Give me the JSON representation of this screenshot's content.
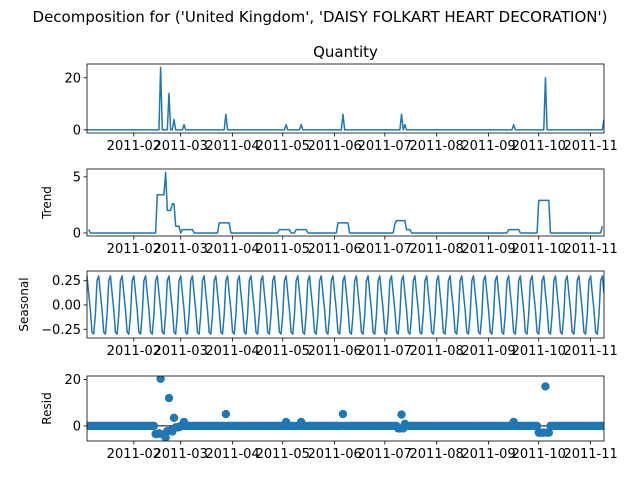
{
  "figure": {
    "suptitle": "Decomposition for ('United Kingdom', 'DAISY FOLKART HEART DECORATION')"
  },
  "colors": {
    "series": "#1f77b4",
    "axis": "#000000",
    "zero_line": "#000000"
  },
  "chart_data": [
    {
      "type": "line",
      "title": "Quantity",
      "ylabel": "",
      "xlim": [
        "2011-01-04",
        "2011-11-09"
      ],
      "ylim": [
        -1.2,
        25.3
      ],
      "yticks": [
        0,
        20
      ],
      "ytick_labels": [
        "0",
        "20"
      ],
      "xticks": [
        "2011-02-01",
        "2011-03-01",
        "2011-04-01",
        "2011-05-01",
        "2011-06-01",
        "2011-07-01",
        "2011-08-01",
        "2011-09-01",
        "2011-10-01",
        "2011-11-01"
      ],
      "xtick_labels": [
        "2011-02",
        "2011-03",
        "2011-04",
        "2011-05",
        "2011-06",
        "2011-07",
        "2011-08",
        "2011-09",
        "2011-10",
        "2011-11"
      ],
      "baseline": 0,
      "spikes": [
        {
          "x": "2011-02-17",
          "y": 24
        },
        {
          "x": "2011-02-22",
          "y": 14
        },
        {
          "x": "2011-02-25",
          "y": 4
        },
        {
          "x": "2011-03-03",
          "y": 2
        },
        {
          "x": "2011-03-28",
          "y": 6
        },
        {
          "x": "2011-05-03",
          "y": 2
        },
        {
          "x": "2011-05-12",
          "y": 2
        },
        {
          "x": "2011-06-06",
          "y": 6
        },
        {
          "x": "2011-07-11",
          "y": 6
        },
        {
          "x": "2011-07-13",
          "y": 2
        },
        {
          "x": "2011-09-16",
          "y": 2
        },
        {
          "x": "2011-10-05",
          "y": 20
        },
        {
          "x": "2011-11-09",
          "y": 4
        }
      ]
    },
    {
      "type": "line",
      "title": "",
      "ylabel": "Trend",
      "xlim": [
        "2011-01-04",
        "2011-11-09"
      ],
      "ylim": [
        -0.27,
        5.7
      ],
      "yticks": [
        0,
        5
      ],
      "ytick_labels": [
        "0",
        "5"
      ],
      "xticks": [
        "2011-02-01",
        "2011-03-01",
        "2011-04-01",
        "2011-05-01",
        "2011-06-01",
        "2011-07-01",
        "2011-08-01",
        "2011-09-01",
        "2011-10-01",
        "2011-11-01"
      ],
      "xtick_labels": [
        "2011-02",
        "2011-03",
        "2011-04",
        "2011-05",
        "2011-06",
        "2011-07",
        "2011-08",
        "2011-09",
        "2011-10",
        "2011-11"
      ],
      "points": [
        [
          "2011-01-05",
          0.3
        ],
        [
          "2011-01-06",
          0.0
        ],
        [
          "2011-02-14",
          0.0
        ],
        [
          "2011-02-15",
          3.4
        ],
        [
          "2011-02-19",
          3.4
        ],
        [
          "2011-02-20",
          5.4
        ],
        [
          "2011-02-21",
          2.0
        ],
        [
          "2011-02-23",
          2.0
        ],
        [
          "2011-02-24",
          2.6
        ],
        [
          "2011-02-25",
          2.6
        ],
        [
          "2011-02-26",
          0.6
        ],
        [
          "2011-02-28",
          0.6
        ],
        [
          "2011-03-01",
          0.0
        ],
        [
          "2011-03-02",
          0.3
        ],
        [
          "2011-03-08",
          0.3
        ],
        [
          "2011-03-09",
          0.0
        ],
        [
          "2011-03-23",
          0.0
        ],
        [
          "2011-03-24",
          0.9
        ],
        [
          "2011-03-30",
          0.9
        ],
        [
          "2011-03-31",
          0.0
        ],
        [
          "2011-04-28",
          0.0
        ],
        [
          "2011-04-29",
          0.3
        ],
        [
          "2011-05-05",
          0.3
        ],
        [
          "2011-05-06",
          0.0
        ],
        [
          "2011-05-08",
          0.0
        ],
        [
          "2011-05-09",
          0.3
        ],
        [
          "2011-05-15",
          0.3
        ],
        [
          "2011-05-16",
          0.0
        ],
        [
          "2011-06-02",
          0.0
        ],
        [
          "2011-06-03",
          0.9
        ],
        [
          "2011-06-09",
          0.9
        ],
        [
          "2011-06-10",
          0.0
        ],
        [
          "2011-07-06",
          0.0
        ],
        [
          "2011-07-07",
          0.8
        ],
        [
          "2011-07-08",
          1.1
        ],
        [
          "2011-07-13",
          1.1
        ],
        [
          "2011-07-14",
          0.3
        ],
        [
          "2011-07-16",
          0.3
        ],
        [
          "2011-07-17",
          0.0
        ],
        [
          "2011-09-12",
          0.0
        ],
        [
          "2011-09-13",
          0.3
        ],
        [
          "2011-09-19",
          0.3
        ],
        [
          "2011-09-20",
          0.0
        ],
        [
          "2011-09-30",
          0.0
        ],
        [
          "2011-10-01",
          2.9
        ],
        [
          "2011-10-07",
          2.9
        ],
        [
          "2011-10-08",
          0.0
        ],
        [
          "2011-11-07",
          0.0
        ],
        [
          "2011-11-08",
          0.6
        ]
      ]
    },
    {
      "type": "line",
      "title": "",
      "ylabel": "Seasonal",
      "xlim": [
        "2011-01-04",
        "2011-11-09"
      ],
      "ylim": [
        -0.34,
        0.35
      ],
      "yticks": [
        -0.25,
        0.0,
        0.25
      ],
      "ytick_labels": [
        "−0.25",
        "0.00",
        "0.25"
      ],
      "xticks": [
        "2011-02-01",
        "2011-03-01",
        "2011-04-01",
        "2011-05-01",
        "2011-06-01",
        "2011-07-01",
        "2011-08-01",
        "2011-09-01",
        "2011-10-01",
        "2011-11-01"
      ],
      "xtick_labels": [
        "2011-02",
        "2011-03",
        "2011-04",
        "2011-05",
        "2011-06",
        "2011-07",
        "2011-08",
        "2011-09",
        "2011-10",
        "2011-11"
      ],
      "period_days": 7,
      "weekly_pattern": [
        0.3,
        0.12,
        -0.05,
        -0.28,
        -0.3,
        -0.1,
        0.25
      ],
      "start": "2011-01-04",
      "end": "2011-11-09"
    },
    {
      "type": "scatter",
      "title": "",
      "ylabel": "Resid",
      "xlim": [
        "2011-01-04",
        "2011-11-09"
      ],
      "ylim": [
        -6.5,
        21.5
      ],
      "yticks": [
        0,
        20
      ],
      "ytick_labels": [
        "0",
        "20"
      ],
      "xticks": [
        "2011-02-01",
        "2011-03-01",
        "2011-04-01",
        "2011-05-01",
        "2011-06-01",
        "2011-07-01",
        "2011-08-01",
        "2011-09-01",
        "2011-10-01",
        "2011-11-01"
      ],
      "xtick_labels": [
        "2011-02",
        "2011-03",
        "2011-04",
        "2011-05",
        "2011-06",
        "2011-07",
        "2011-08",
        "2011-09",
        "2011-10",
        "2011-11"
      ],
      "zero_line": 0,
      "default_value": 0,
      "start": "2011-01-04",
      "end": "2011-11-09",
      "exceptions": [
        [
          "2011-02-14",
          -3.5
        ],
        [
          "2011-02-15",
          -3.5
        ],
        [
          "2011-02-16",
          -3.2
        ],
        [
          "2011-02-17",
          20.3
        ],
        [
          "2011-02-18",
          -3.6
        ],
        [
          "2011-02-19",
          -3.8
        ],
        [
          "2011-02-20",
          -5.0
        ],
        [
          "2011-02-21",
          -2.2
        ],
        [
          "2011-02-22",
          12.0
        ],
        [
          "2011-02-23",
          -2.0
        ],
        [
          "2011-02-24",
          -2.4
        ],
        [
          "2011-02-25",
          3.5
        ],
        [
          "2011-02-26",
          -0.6
        ],
        [
          "2011-02-27",
          -0.6
        ],
        [
          "2011-02-28",
          -0.6
        ],
        [
          "2011-03-03",
          1.7
        ],
        [
          "2011-03-28",
          5.1
        ],
        [
          "2011-05-03",
          1.7
        ],
        [
          "2011-05-12",
          1.7
        ],
        [
          "2011-06-06",
          5.1
        ],
        [
          "2011-07-11",
          4.9
        ],
        [
          "2011-07-09",
          -1.1
        ],
        [
          "2011-07-10",
          -1.1
        ],
        [
          "2011-07-12",
          -1.1
        ],
        [
          "2011-07-13",
          0.9
        ],
        [
          "2011-09-16",
          1.7
        ],
        [
          "2011-10-01",
          -2.9
        ],
        [
          "2011-10-02",
          -2.9
        ],
        [
          "2011-10-03",
          -2.9
        ],
        [
          "2011-10-04",
          -2.9
        ],
        [
          "2011-10-05",
          17.0
        ],
        [
          "2011-10-06",
          -2.9
        ],
        [
          "2011-10-07",
          -2.9
        ]
      ]
    }
  ]
}
